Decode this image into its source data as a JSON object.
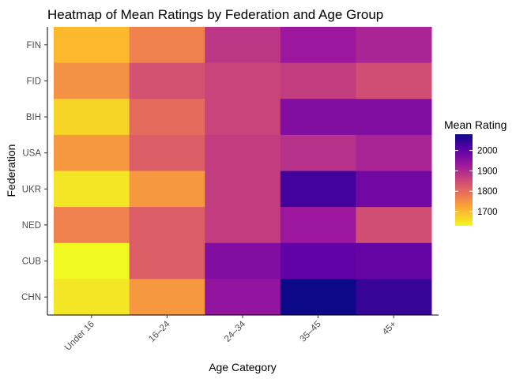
{
  "chart_data": {
    "type": "heatmap",
    "title": "Heatmap of Mean Ratings by Federation and Age Group",
    "xlabel": "Age Category",
    "ylabel": "Federation",
    "x_categories": [
      "Under 16",
      "16–24",
      "24–34",
      "35–45",
      "45+"
    ],
    "y_categories": [
      "FIN",
      "FID",
      "BIH",
      "USA",
      "UKR",
      "NED",
      "CUB",
      "CHN"
    ],
    "values": [
      [
        1700,
        1770,
        1880,
        1930,
        1910
      ],
      [
        1750,
        1840,
        1860,
        1870,
        1845
      ],
      [
        1670,
        1800,
        1860,
        1960,
        1960
      ],
      [
        1740,
        1820,
        1870,
        1890,
        1910
      ],
      [
        1650,
        1740,
        1870,
        2030,
        1980
      ],
      [
        1770,
        1820,
        1870,
        1930,
        1845
      ],
      [
        1630,
        1820,
        1960,
        2000,
        1995
      ],
      [
        1650,
        1740,
        1940,
        2080,
        2040
      ]
    ],
    "legend": {
      "title": "Mean Rating",
      "position": "right",
      "range": [
        1630,
        2080
      ],
      "ticks": [
        1700,
        1800,
        1900,
        2000
      ],
      "tick_labels": [
        "1700",
        "1800",
        "1900",
        "2000"
      ]
    },
    "colorscale": [
      "#0d0887",
      "#5c01a6",
      "#9c179e",
      "#cc4778",
      "#ed7953",
      "#fdb42f",
      "#f0f921"
    ],
    "grid": false
  }
}
